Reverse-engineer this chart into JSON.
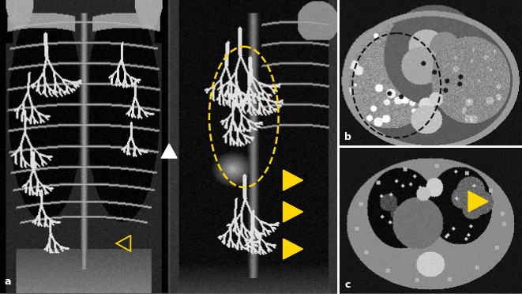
{
  "figsize": [
    6.61,
    3.72
  ],
  "dpi": 100,
  "background_color": "#606060",
  "border_color": "#ffffff",
  "label_a": "a",
  "label_b": "b",
  "label_c": "c",
  "label_color": "#ffffff",
  "label_fontsize": 9,
  "arrowhead_color": "#FFD700",
  "ellipse_color": "#FFD700",
  "circle_color": "#111111",
  "white_arrow_color": "#ffffff",
  "panel_a_split": 0.651,
  "panel_bc_split": 0.5
}
